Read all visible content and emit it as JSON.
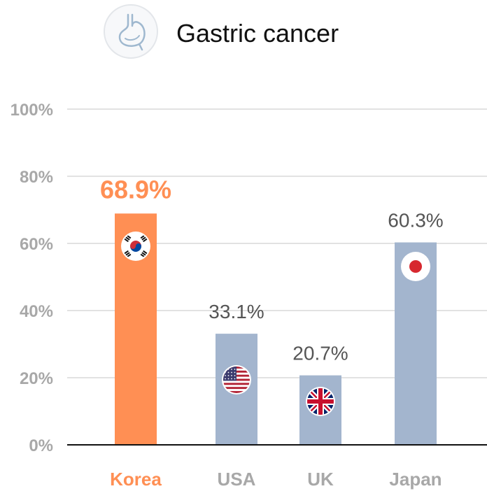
{
  "colors": {
    "highlight": "#FF8F54",
    "default_bar": "#A3B5CE",
    "grid": "#d9d9d9",
    "axis": "#111111",
    "tick_label": "#a8a8a8",
    "value_label": "#555555",
    "icon_circle_fill": "#f7f8fa",
    "icon_circle_stroke": "#e3e6ea",
    "icon_stroke": "#9fb8cf"
  },
  "header": {
    "icon": "stomach-icon",
    "title": "Gastric cancer"
  },
  "chart_data": {
    "type": "bar",
    "title": "Gastric cancer",
    "xlabel": "",
    "ylabel": "",
    "ylim": [
      0,
      100
    ],
    "yticks": [
      0,
      20,
      40,
      60,
      80,
      100
    ],
    "ytick_labels": [
      "0%",
      "20%",
      "40%",
      "60%",
      "80%",
      "100%"
    ],
    "grid": true,
    "legend": "none",
    "categories": [
      "Korea",
      "USA",
      "UK",
      "Japan"
    ],
    "values": [
      68.9,
      33.1,
      20.7,
      60.3
    ],
    "value_labels": [
      "68.9%",
      "33.1%",
      "20.7%",
      "60.3%"
    ],
    "highlight_index": 0,
    "flags": [
      "korea-flag-icon",
      "usa-flag-icon",
      "uk-flag-icon",
      "japan-flag-icon"
    ]
  }
}
